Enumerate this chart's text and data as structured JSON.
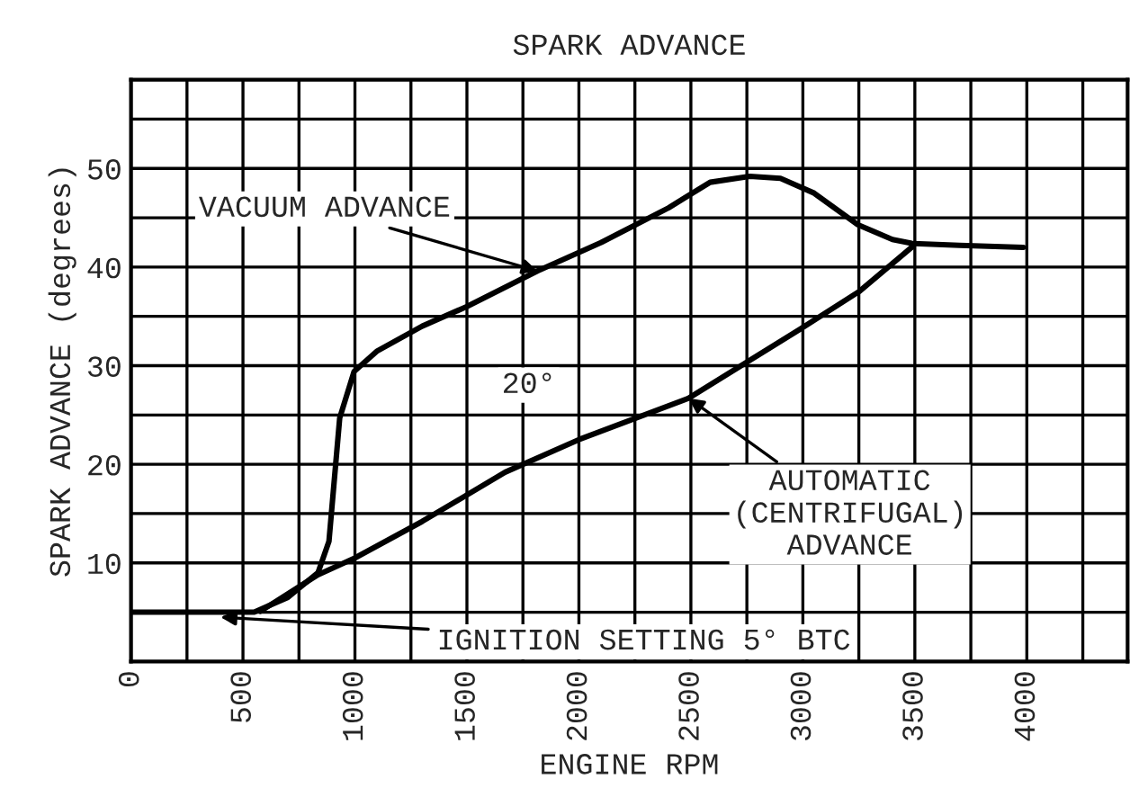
{
  "chart_data": {
    "type": "line",
    "title": "SPARK ADVANCE",
    "xlabel": "ENGINE RPM",
    "ylabel": "SPARK ADVANCE (degrees)",
    "series": [
      {
        "color": "#000000",
        "x": [
          0,
          300,
          550,
          700,
          835,
          884,
          932,
          996,
          1100,
          1300,
          1500,
          1815,
          2100,
          2400,
          2586,
          2763,
          2900,
          3050,
          3245,
          3400,
          3486,
          3700,
          3984
        ],
        "values": [
          5,
          5,
          5,
          6.5,
          9,
          12.2,
          24.7,
          29.4,
          31.5,
          34,
          36,
          39.6,
          42.5,
          46,
          48.6,
          49.2,
          49,
          47.5,
          44.3,
          42.8,
          42.4,
          42.2,
          42
        ]
      },
      {
        "color": "#000000",
        "x": [
          578,
          835,
          1000,
          1300,
          1671,
          2000,
          2490,
          2988,
          3250,
          3486
        ],
        "values": [
          5.1,
          8.8,
          10.5,
          14.2,
          19.2,
          22.5,
          26.7,
          33.7,
          37.5,
          42
        ]
      }
    ],
    "annotations": [
      {
        "text": "VACUUM ADVANCE",
        "x": 1815,
        "y": 39.6
      },
      "20°",
      {
        "text": "AUTOMATIC\n(CENTRIFUGAL)\nADVANCE",
        "x": 2490,
        "y": 26.7
      },
      {
        "text": "IGNITION SETTING 5° BTC",
        "x": 400,
        "y": 4.5
      }
    ],
    "xlim": [
      0,
      4450
    ],
    "ylim": [
      0,
      59
    ],
    "xticks": [
      0,
      {
        "value": 250,
        "label": null
      },
      500,
      {
        "value": 750,
        "label": null
      },
      1000,
      {
        "value": 1250,
        "label": null
      },
      1500,
      {
        "value": 1750,
        "label": null
      },
      2000,
      {
        "value": 2250,
        "label": null
      },
      2500,
      {
        "value": 2750,
        "label": null
      },
      3000,
      {
        "value": 3250,
        "label": null
      },
      3500,
      {
        "value": 3750,
        "label": null
      },
      4000,
      {
        "value": 4250,
        "label": null
      }
    ],
    "yticks": [
      {
        "value": 5,
        "label": null
      },
      10,
      {
        "value": 15,
        "label": null
      },
      20,
      {
        "value": 25,
        "label": null
      },
      30,
      {
        "value": 35,
        "label": null
      },
      40,
      {
        "value": 45,
        "label": null
      },
      50,
      {
        "value": 55,
        "label": null
      }
    ],
    "grid": true,
    "legend": false,
    "marker": "none",
    "line_style": "solid"
  }
}
